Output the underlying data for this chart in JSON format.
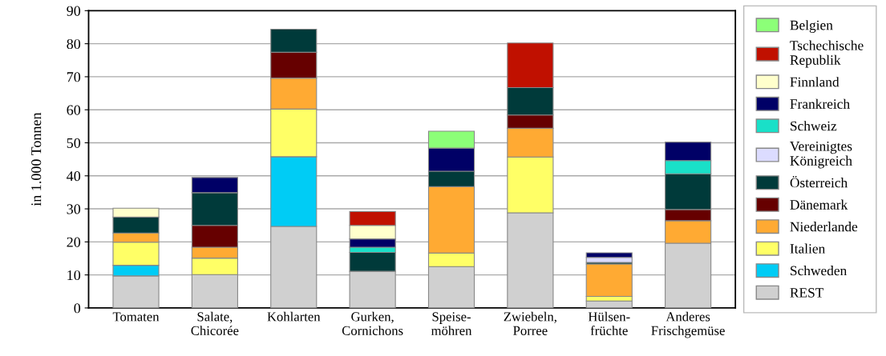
{
  "chart_data": {
    "type": "bar",
    "stacked": true,
    "ylabel": "in 1.000 Tonnen",
    "categories": [
      "Tomaten",
      "Salate,\nChicorée",
      "Kohlarten",
      "Gurken,\nCornichons",
      "Speise-\nmöhren",
      "Zwiebeln,\nPorree",
      "Hülsen-\nfrüchte",
      "Anderes\nFrischgemüse"
    ],
    "series": [
      {
        "name": "REST",
        "color": "#d0d0d0",
        "values": [
          9.7,
          10.1,
          24.7,
          11.1,
          12.5,
          28.8,
          2.1,
          19.6
        ]
      },
      {
        "name": "Schweden",
        "color": "#00ccf5",
        "values": [
          3.2,
          null,
          21.1,
          null,
          null,
          null,
          null,
          null
        ]
      },
      {
        "name": "Italien",
        "color": "#ffff66",
        "values": [
          7.0,
          5.0,
          14.4,
          null,
          4.1,
          16.9,
          1.4,
          null
        ]
      },
      {
        "name": "Niederlande",
        "color": "#ffaa33",
        "values": [
          2.8,
          3.3,
          9.4,
          null,
          20.1,
          8.7,
          9.8,
          6.8
        ]
      },
      {
        "name": "Dänemark",
        "color": "#660000",
        "values": [
          null,
          6.6,
          7.8,
          null,
          null,
          4.0,
          null,
          3.4
        ]
      },
      {
        "name": "Österreich",
        "color": "#003a3a",
        "values": [
          4.8,
          9.9,
          7.0,
          5.7,
          4.7,
          8.3,
          0.5,
          10.8
        ]
      },
      {
        "name": "Vereinigtes\nKönigreich",
        "color": "#dcdcff",
        "values": [
          null,
          null,
          null,
          null,
          null,
          null,
          1.5,
          null
        ]
      },
      {
        "name": "Schweiz",
        "color": "#19e0c8",
        "values": [
          null,
          null,
          null,
          1.6,
          null,
          null,
          null,
          4.0
        ]
      },
      {
        "name": "Frankreich",
        "color": "#000066",
        "values": [
          null,
          4.6,
          null,
          2.5,
          7.0,
          null,
          1.4,
          5.6
        ]
      },
      {
        "name": "Finnland",
        "color": "#ffffcc",
        "values": [
          2.7,
          null,
          null,
          4.1,
          null,
          null,
          null,
          null
        ]
      },
      {
        "name": "Tschechische\nRepublik",
        "color": "#c01000",
        "values": [
          null,
          null,
          null,
          4.2,
          null,
          13.5,
          null,
          null
        ]
      },
      {
        "name": "Belgien",
        "color": "#8cff78",
        "values": [
          null,
          null,
          null,
          null,
          5.1,
          null,
          null,
          null
        ]
      }
    ],
    "ylim": [
      0,
      90
    ],
    "yticks": [
      0,
      10,
      20,
      30,
      40,
      50,
      60,
      70,
      80,
      90
    ],
    "grid": "y",
    "legend": "right"
  }
}
